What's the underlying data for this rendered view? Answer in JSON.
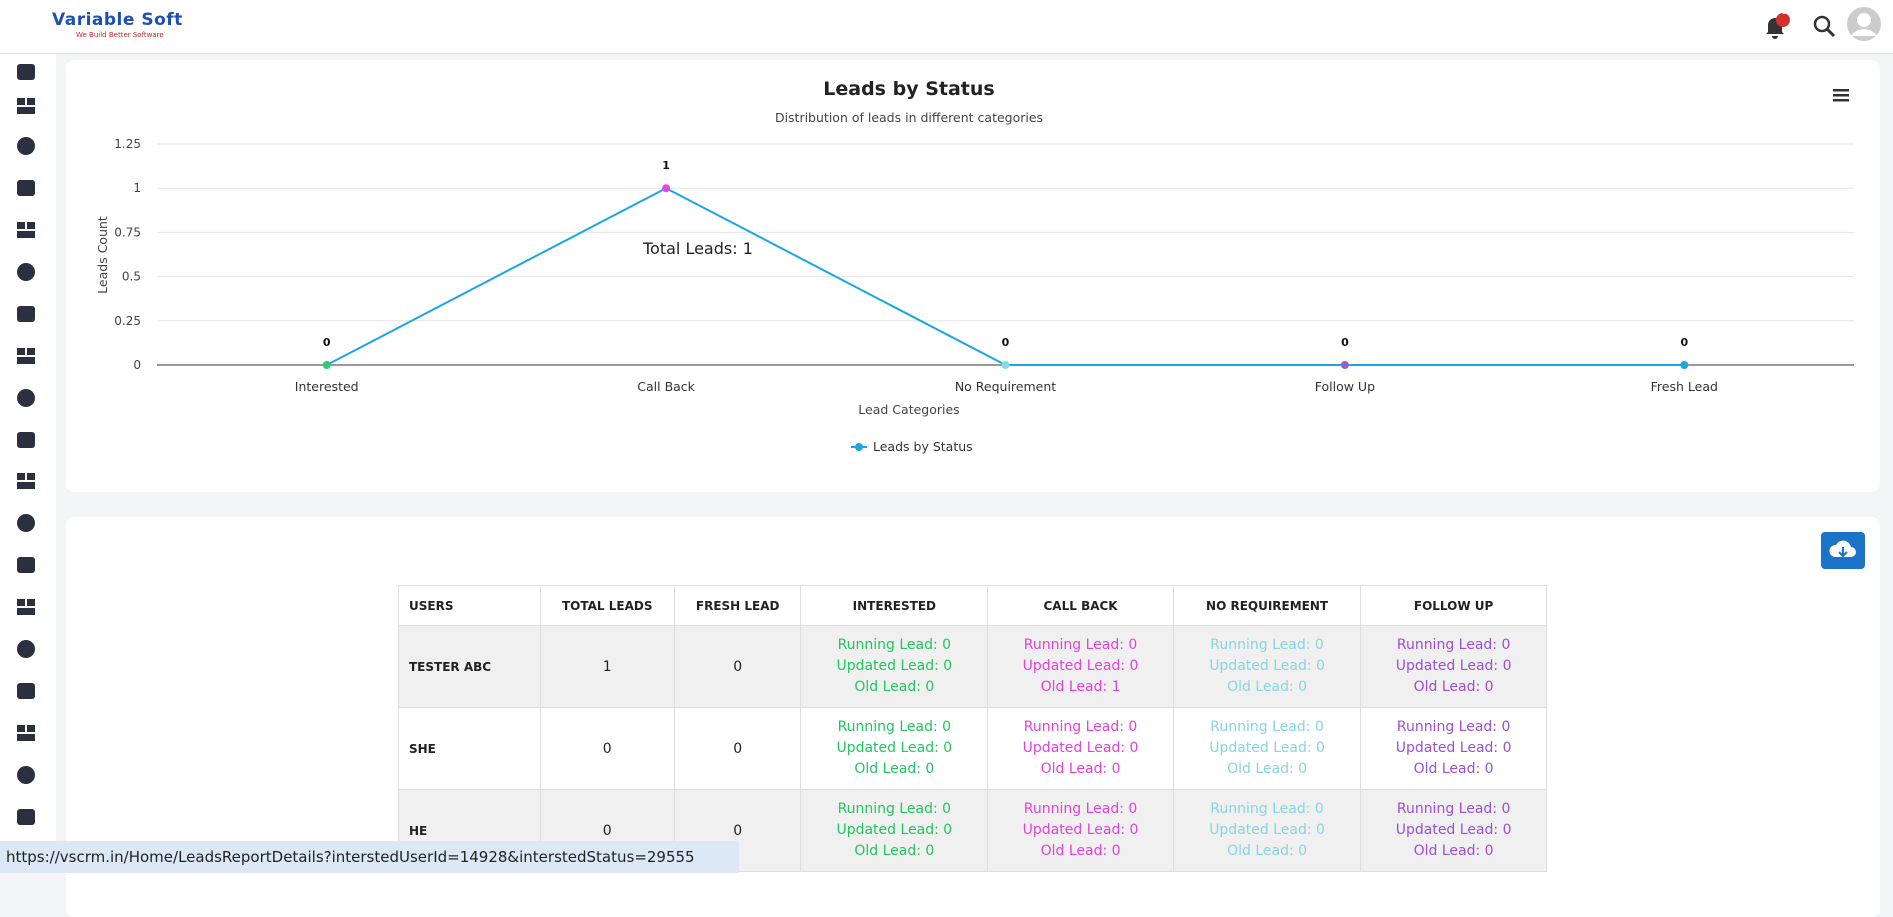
{
  "header": {
    "logo": "Variable Soft",
    "tagline": "We Build Better Software",
    "notification_count": "6"
  },
  "chart_data": {
    "type": "line",
    "title": "Leads by Status",
    "subtitle": "Distribution of leads in different categories",
    "x_label": "Lead Categories",
    "y_label": "Leads Count",
    "annotation": "Total Leads: 1",
    "categories": [
      "Interested",
      "Call Back",
      "No Requirement",
      "Follow Up",
      "Fresh Lead"
    ],
    "series": [
      {
        "name": "Leads by Status",
        "color": "#1ba6e2",
        "point_colors": [
          "#2ecc71",
          "#e545e0",
          "#86dbe3",
          "#9b5ad8",
          "#1ba6e2"
        ],
        "values": [
          0,
          1,
          0,
          0,
          0
        ]
      }
    ],
    "ylim": [
      0,
      1.25
    ],
    "yticks": [
      0,
      0.25,
      0.5,
      0.75,
      1,
      1.25
    ],
    "grid": true,
    "legend": "bottom"
  },
  "table": {
    "headers": [
      "USERS",
      "TOTAL LEADS",
      "FRESH LEAD",
      "INTERESTED",
      "CALL BACK",
      "NO REQUIREMENT",
      "FOLLOW UP"
    ],
    "rows": [
      [
        "TESTER ABC",
        1,
        0,
        [
          "Running Lead: 0",
          "Updated Lead: 0",
          "Old Lead: 0"
        ],
        [
          "Running Lead: 0",
          "Updated Lead: 0",
          "Old Lead: 1"
        ],
        [
          "Running Lead: 0",
          "Updated Lead: 0",
          "Old Lead: 0"
        ],
        [
          "Running Lead: 0",
          "Updated Lead: 0",
          "Old Lead: 0"
        ]
      ],
      [
        "SHE",
        0,
        0,
        [
          "Running Lead: 0",
          "Updated Lead: 0",
          "Old Lead: 0"
        ],
        [
          "Running Lead: 0",
          "Updated Lead: 0",
          "Old Lead: 0"
        ],
        [
          "Running Lead: 0",
          "Updated Lead: 0",
          "Old Lead: 0"
        ],
        [
          "Running Lead: 0",
          "Updated Lead: 0",
          "Old Lead: 0"
        ]
      ],
      [
        "HE",
        0,
        0,
        [
          "Running Lead: 0",
          "Updated Lead: 0",
          "Old Lead: 0"
        ],
        [
          "Running Lead: 0",
          "Updated Lead: 0",
          "Old Lead: 0"
        ],
        [
          "Running Lead: 0",
          "Updated Lead: 0",
          "Old Lead: 0"
        ],
        [
          "Running Lead: 0",
          "Updated Lead: 0",
          "Old Lead: 0"
        ]
      ]
    ]
  },
  "status_bar": "https://vscrm.in/Home/LeadsReportDetails?interstedUserId=14928&interstedStatus=29555"
}
